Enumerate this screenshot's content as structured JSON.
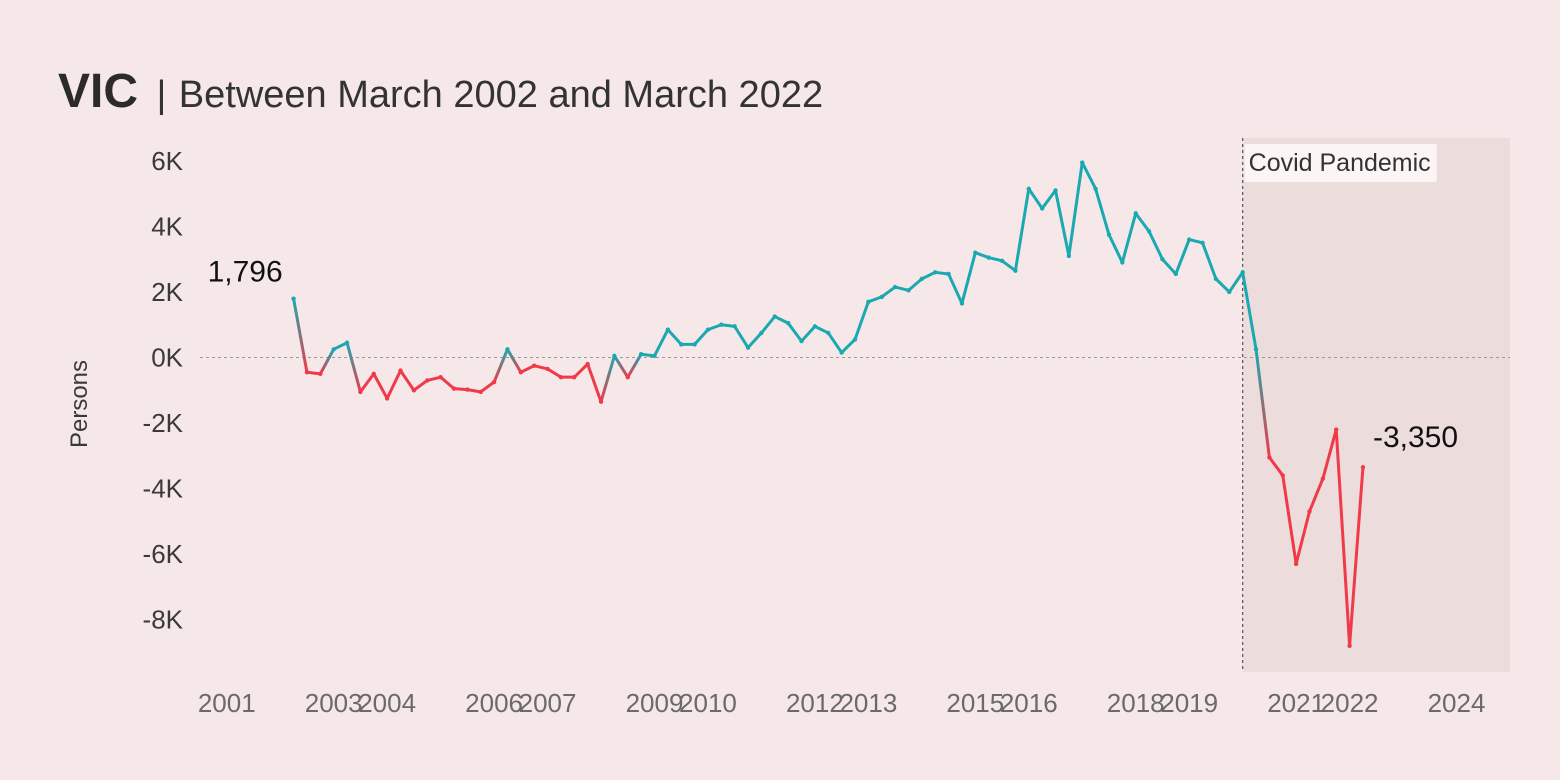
{
  "title": "VIC",
  "subtitle": "Between March 2002 and March 2022",
  "title_separator": "|",
  "colors": {
    "background": "#f6e8e8",
    "positive": "#1aa9b0",
    "negative": "#f03a4a",
    "pandemic_shade": "#ecdcdc",
    "zero_line": "#9a9a9a"
  },
  "chart_data": {
    "type": "line",
    "ylabel": "Persons",
    "xlabel": "",
    "ylim": [
      -9600,
      6700
    ],
    "xlim": [
      2000.5,
      2025
    ],
    "y_ticks": [
      6000,
      4000,
      2000,
      0,
      -2000,
      -4000,
      -6000,
      -8000
    ],
    "y_tick_labels": [
      "6K",
      "4K",
      "2K",
      "0K",
      "-2K",
      "-4K",
      "-6K",
      "-8K"
    ],
    "x_ticks": [
      2001,
      2003,
      2004,
      2006,
      2007,
      2009,
      2010,
      2012,
      2013,
      2015,
      2016,
      2018,
      2019,
      2021,
      2022,
      2024
    ],
    "x_tick_labels": [
      "2001",
      "2003",
      "2004",
      "2006",
      "2007",
      "2009",
      "2010",
      "2012",
      "2013",
      "2015",
      "2016",
      "2018",
      "2019",
      "2021",
      "2022",
      "2024"
    ],
    "grid": false,
    "zero_line": true,
    "series": [
      {
        "x": [
          2002.25,
          2002.5,
          2002.75,
          2003.0,
          2003.25,
          2003.5,
          2003.75,
          2004.0,
          2004.25,
          2004.5,
          2004.75,
          2005.0,
          2005.25,
          2005.5,
          2005.75,
          2006.0,
          2006.25,
          2006.5,
          2006.75,
          2007.0,
          2007.25,
          2007.5,
          2007.75,
          2008.0,
          2008.25,
          2008.5,
          2008.75,
          2009.0,
          2009.25,
          2009.5,
          2009.75,
          2010.0,
          2010.25,
          2010.5,
          2010.75,
          2011.0,
          2011.25,
          2011.5,
          2011.75,
          2012.0,
          2012.25,
          2012.5,
          2012.75,
          2013.0,
          2013.25,
          2013.5,
          2013.75,
          2014.0,
          2014.25,
          2014.5,
          2014.75,
          2015.0,
          2015.25,
          2015.5,
          2015.75,
          2016.0,
          2016.25,
          2016.5,
          2016.75,
          2017.0,
          2017.25,
          2017.5,
          2017.75,
          2018.0,
          2018.25,
          2018.5,
          2018.75,
          2019.0,
          2019.25,
          2019.5,
          2019.75,
          2020.0,
          2020.25,
          2020.5,
          2020.75,
          2021.0,
          2021.25,
          2021.5,
          2021.75,
          2022.0,
          2022.25
        ],
        "y": [
          1796,
          -450,
          -500,
          250,
          450,
          -1050,
          -500,
          -1250,
          -400,
          -1000,
          -700,
          -600,
          -950,
          -980,
          -1050,
          -750,
          250,
          -450,
          -250,
          -350,
          -600,
          -600,
          -200,
          -1350,
          50,
          -600,
          100,
          50,
          850,
          400,
          400,
          850,
          1000,
          950,
          300,
          750,
          1250,
          1050,
          500,
          950,
          750,
          150,
          550,
          1700,
          1850,
          2150,
          2050,
          2400,
          2600,
          2550,
          1650,
          3200,
          3050,
          2950,
          2650,
          5150,
          4550,
          5100,
          3100,
          5950,
          5150,
          3750,
          2900,
          4400,
          3850,
          3000,
          2550,
          3600,
          3500,
          2400,
          2000,
          2600,
          250,
          -3050,
          -3600,
          -6300,
          -4700,
          -3700,
          -2200,
          -8800,
          -3350
        ]
      }
    ],
    "data_labels": [
      {
        "x": 2002.25,
        "y": 1796,
        "text": "1,796"
      },
      {
        "x": 2022.25,
        "y": -3350,
        "text": "-3,350"
      }
    ],
    "annotations": [
      {
        "text": "Covid Pandemic",
        "x_start": 2020.0,
        "x_end": 2025.0
      }
    ]
  }
}
